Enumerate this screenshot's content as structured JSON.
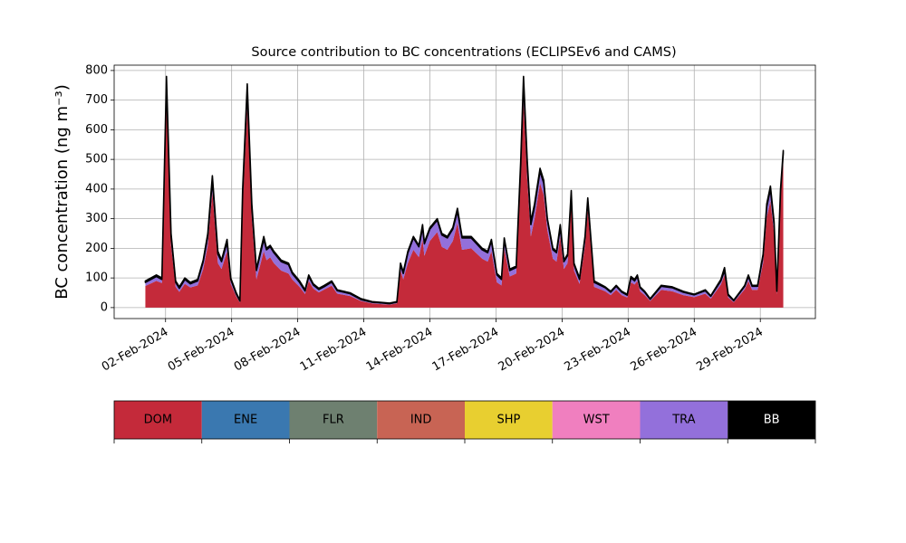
{
  "chart_data": {
    "type": "stacked_area",
    "title": "Source contribution to BC concentrations (ECLIPSEv6 and CAMS)",
    "ylabel": "BC concentration (ng m⁻³)",
    "x": [
      "2024-02-01 02:00",
      "2024-02-01 14:00",
      "2024-02-01 20:00",
      "2024-02-02 01:00",
      "2024-02-02 06:00",
      "2024-02-02 11:00",
      "2024-02-02 15:00",
      "2024-02-02 21:00",
      "2024-02-03 03:00",
      "2024-02-03 11:00",
      "2024-02-03 17:00",
      "2024-02-03 22:00",
      "2024-02-04 03:00",
      "2024-02-04 09:00",
      "2024-02-04 13:00",
      "2024-02-04 19:00",
      "2024-02-04 23:00",
      "2024-02-05 05:00",
      "2024-02-05 09:00",
      "2024-02-05 12:00",
      "2024-02-05 17:00",
      "2024-02-05 22:00",
      "2024-02-06 03:00",
      "2024-02-06 11:00",
      "2024-02-06 14:00",
      "2024-02-06 18:00",
      "2024-02-06 22:00",
      "2024-02-07 06:00",
      "2024-02-07 14:00",
      "2024-02-07 18:00",
      "2024-02-08 02:00",
      "2024-02-08 08:00",
      "2024-02-08 12:00",
      "2024-02-08 17:00",
      "2024-02-08 23:00",
      "2024-02-09 05:00",
      "2024-02-09 13:00",
      "2024-02-09 19:00",
      "2024-02-10 09:00",
      "2024-02-10 21:00",
      "2024-02-11 09:00",
      "2024-02-11 18:00",
      "2024-02-12 04:00",
      "2024-02-12 12:00",
      "2024-02-12 16:00",
      "2024-02-12 19:00",
      "2024-02-13 00:00",
      "2024-02-13 06:00",
      "2024-02-13 12:00",
      "2024-02-13 16:00",
      "2024-02-13 18:00",
      "2024-02-14 00:00",
      "2024-02-14 08:00",
      "2024-02-14 13:00",
      "2024-02-14 19:00",
      "2024-02-15 01:00",
      "2024-02-15 06:00",
      "2024-02-15 11:00",
      "2024-02-15 21:00",
      "2024-02-16 09:00",
      "2024-02-16 15:00",
      "2024-02-16 19:00",
      "2024-02-17 01:00",
      "2024-02-17 06:00",
      "2024-02-17 09:00",
      "2024-02-17 15:00",
      "2024-02-17 22:00",
      "2024-02-18 03:00",
      "2024-02-18 06:00",
      "2024-02-18 10:00",
      "2024-02-18 14:00",
      "2024-02-18 18:00",
      "2024-02-19 00:00",
      "2024-02-19 04:00",
      "2024-02-19 08:00",
      "2024-02-19 14:00",
      "2024-02-19 18:00",
      "2024-02-19 22:00",
      "2024-02-20 02:00",
      "2024-02-20 06:00",
      "2024-02-20 10:00",
      "2024-02-20 13:00",
      "2024-02-20 19:00",
      "2024-02-21 01:00",
      "2024-02-21 04:00",
      "2024-02-21 07:00",
      "2024-02-21 11:00",
      "2024-02-21 23:00",
      "2024-02-22 05:00",
      "2024-02-22 11:00",
      "2024-02-22 17:00",
      "2024-02-22 23:00",
      "2024-02-23 03:00",
      "2024-02-23 07:00",
      "2024-02-23 10:00",
      "2024-02-23 13:00",
      "2024-02-23 18:00",
      "2024-02-24 00:00",
      "2024-02-24 12:00",
      "2024-02-25 00:00",
      "2024-02-25 12:00",
      "2024-02-26 00:00",
      "2024-02-26 12:00",
      "2024-02-26 18:00",
      "2024-02-27 05:00",
      "2024-02-27 09:00",
      "2024-02-27 13:00",
      "2024-02-27 19:00",
      "2024-02-28 07:00",
      "2024-02-28 11:00",
      "2024-02-28 15:00",
      "2024-02-28 21:00",
      "2024-02-29 03:00",
      "2024-02-29 07:00",
      "2024-02-29 11:00",
      "2024-02-29 15:00",
      "2024-02-29 18:00",
      "2024-02-29 22:00",
      "2024-03-01 01:00"
    ],
    "series": [
      {
        "name": "DOM",
        "color": "#c42a3a",
        "values": [
          73,
          90,
          83,
          700,
          210,
          70,
          53,
          80,
          68,
          75,
          130,
          210,
          390,
          150,
          130,
          190,
          80,
          38,
          17,
          345,
          680,
          300,
          95,
          190,
          160,
          170,
          150,
          125,
          115,
          95,
          70,
          46,
          90,
          64,
          51,
          61,
          74,
          47,
          39,
          22,
          14,
          12,
          10,
          14,
          125,
          95,
          150,
          195,
          170,
          230,
          175,
          225,
          255,
          205,
          195,
          225,
          285,
          195,
          200,
          165,
          155,
          190,
          85,
          75,
          200,
          105,
          115,
          445,
          700,
          435,
          240,
          300,
          420,
          380,
          260,
          165,
          155,
          240,
          130,
          150,
          350,
          125,
          80,
          210,
          330,
          220,
          70,
          55,
          42,
          60,
          42,
          34,
          85,
          78,
          90,
          55,
          42,
          22,
          60,
          55,
          42,
          35,
          47,
          30,
          78,
          110,
          34,
          18,
          62,
          90,
          60,
          60,
          150,
          305,
          360,
          250,
          45,
          370,
          500
        ]
      },
      {
        "name": "ENE",
        "color": "#3a78b0"
      },
      {
        "name": "FLR",
        "color": "#6e8070"
      },
      {
        "name": "IND",
        "color": "#c86454"
      },
      {
        "name": "SHP",
        "color": "#e8cf30"
      },
      {
        "name": "WST",
        "color": "#f07fbf"
      },
      {
        "name": "TRA",
        "color": "#9370db",
        "values": [
          12,
          15,
          12,
          60,
          30,
          15,
          12,
          15,
          12,
          15,
          25,
          30,
          40,
          30,
          25,
          30,
          15,
          8,
          5,
          40,
          55,
          35,
          30,
          40,
          35,
          35,
          35,
          30,
          30,
          20,
          15,
          10,
          15,
          12,
          10,
          10,
          12,
          10,
          8,
          5,
          4,
          4,
          3,
          4,
          20,
          20,
          35,
          40,
          35,
          40,
          40,
          40,
          40,
          40,
          40,
          40,
          40,
          40,
          35,
          30,
          30,
          35,
          25,
          20,
          30,
          20,
          20,
          40,
          60,
          50,
          40,
          40,
          40,
          40,
          35,
          30,
          30,
          30,
          25,
          25,
          30,
          20,
          15,
          25,
          30,
          25,
          15,
          12,
          10,
          12,
          10,
          8,
          15,
          12,
          15,
          12,
          10,
          6,
          12,
          12,
          10,
          8,
          10,
          8,
          12,
          15,
          8,
          5,
          10,
          15,
          12,
          12,
          25,
          35,
          40,
          30,
          10,
          20,
          20
        ]
      },
      {
        "name": "BB",
        "color": "#000000",
        "values": [
          5,
          5,
          5,
          20,
          10,
          5,
          5,
          5,
          5,
          5,
          5,
          10,
          15,
          10,
          5,
          10,
          5,
          4,
          3,
          15,
          20,
          15,
          5,
          10,
          5,
          5,
          5,
          5,
          5,
          5,
          5,
          4,
          5,
          4,
          4,
          4,
          4,
          3,
          3,
          3,
          2,
          2,
          2,
          2,
          5,
          5,
          5,
          5,
          5,
          10,
          5,
          5,
          5,
          5,
          5,
          5,
          10,
          5,
          5,
          5,
          5,
          5,
          5,
          5,
          5,
          5,
          5,
          15,
          20,
          15,
          10,
          10,
          10,
          10,
          5,
          5,
          5,
          10,
          5,
          5,
          15,
          5,
          5,
          5,
          10,
          5,
          5,
          3,
          3,
          3,
          3,
          3,
          5,
          5,
          5,
          3,
          3,
          2,
          3,
          3,
          3,
          2,
          3,
          2,
          5,
          10,
          3,
          2,
          3,
          5,
          3,
          3,
          5,
          10,
          10,
          10,
          5,
          10,
          10
        ]
      }
    ],
    "xlim": [
      "2024-01-30 16:00",
      "2024-03-02 12:00"
    ],
    "xticks": [
      {
        "value": "2024-02-02 00:00",
        "label": "02-Feb-2024"
      },
      {
        "value": "2024-02-05 00:00",
        "label": "05-Feb-2024"
      },
      {
        "value": "2024-02-08 00:00",
        "label": "08-Feb-2024"
      },
      {
        "value": "2024-02-11 00:00",
        "label": "11-Feb-2024"
      },
      {
        "value": "2024-02-14 00:00",
        "label": "14-Feb-2024"
      },
      {
        "value": "2024-02-17 00:00",
        "label": "17-Feb-2024"
      },
      {
        "value": "2024-02-20 00:00",
        "label": "20-Feb-2024"
      },
      {
        "value": "2024-02-23 00:00",
        "label": "23-Feb-2024"
      },
      {
        "value": "2024-02-26 00:00",
        "label": "26-Feb-2024"
      },
      {
        "value": "2024-02-29 00:00",
        "label": "29-Feb-2024"
      }
    ],
    "ylim": [
      -37,
      818
    ],
    "yticks": [
      0,
      100,
      200,
      300,
      400,
      500,
      600,
      700,
      800
    ],
    "grid": true,
    "legend": "bottom"
  }
}
